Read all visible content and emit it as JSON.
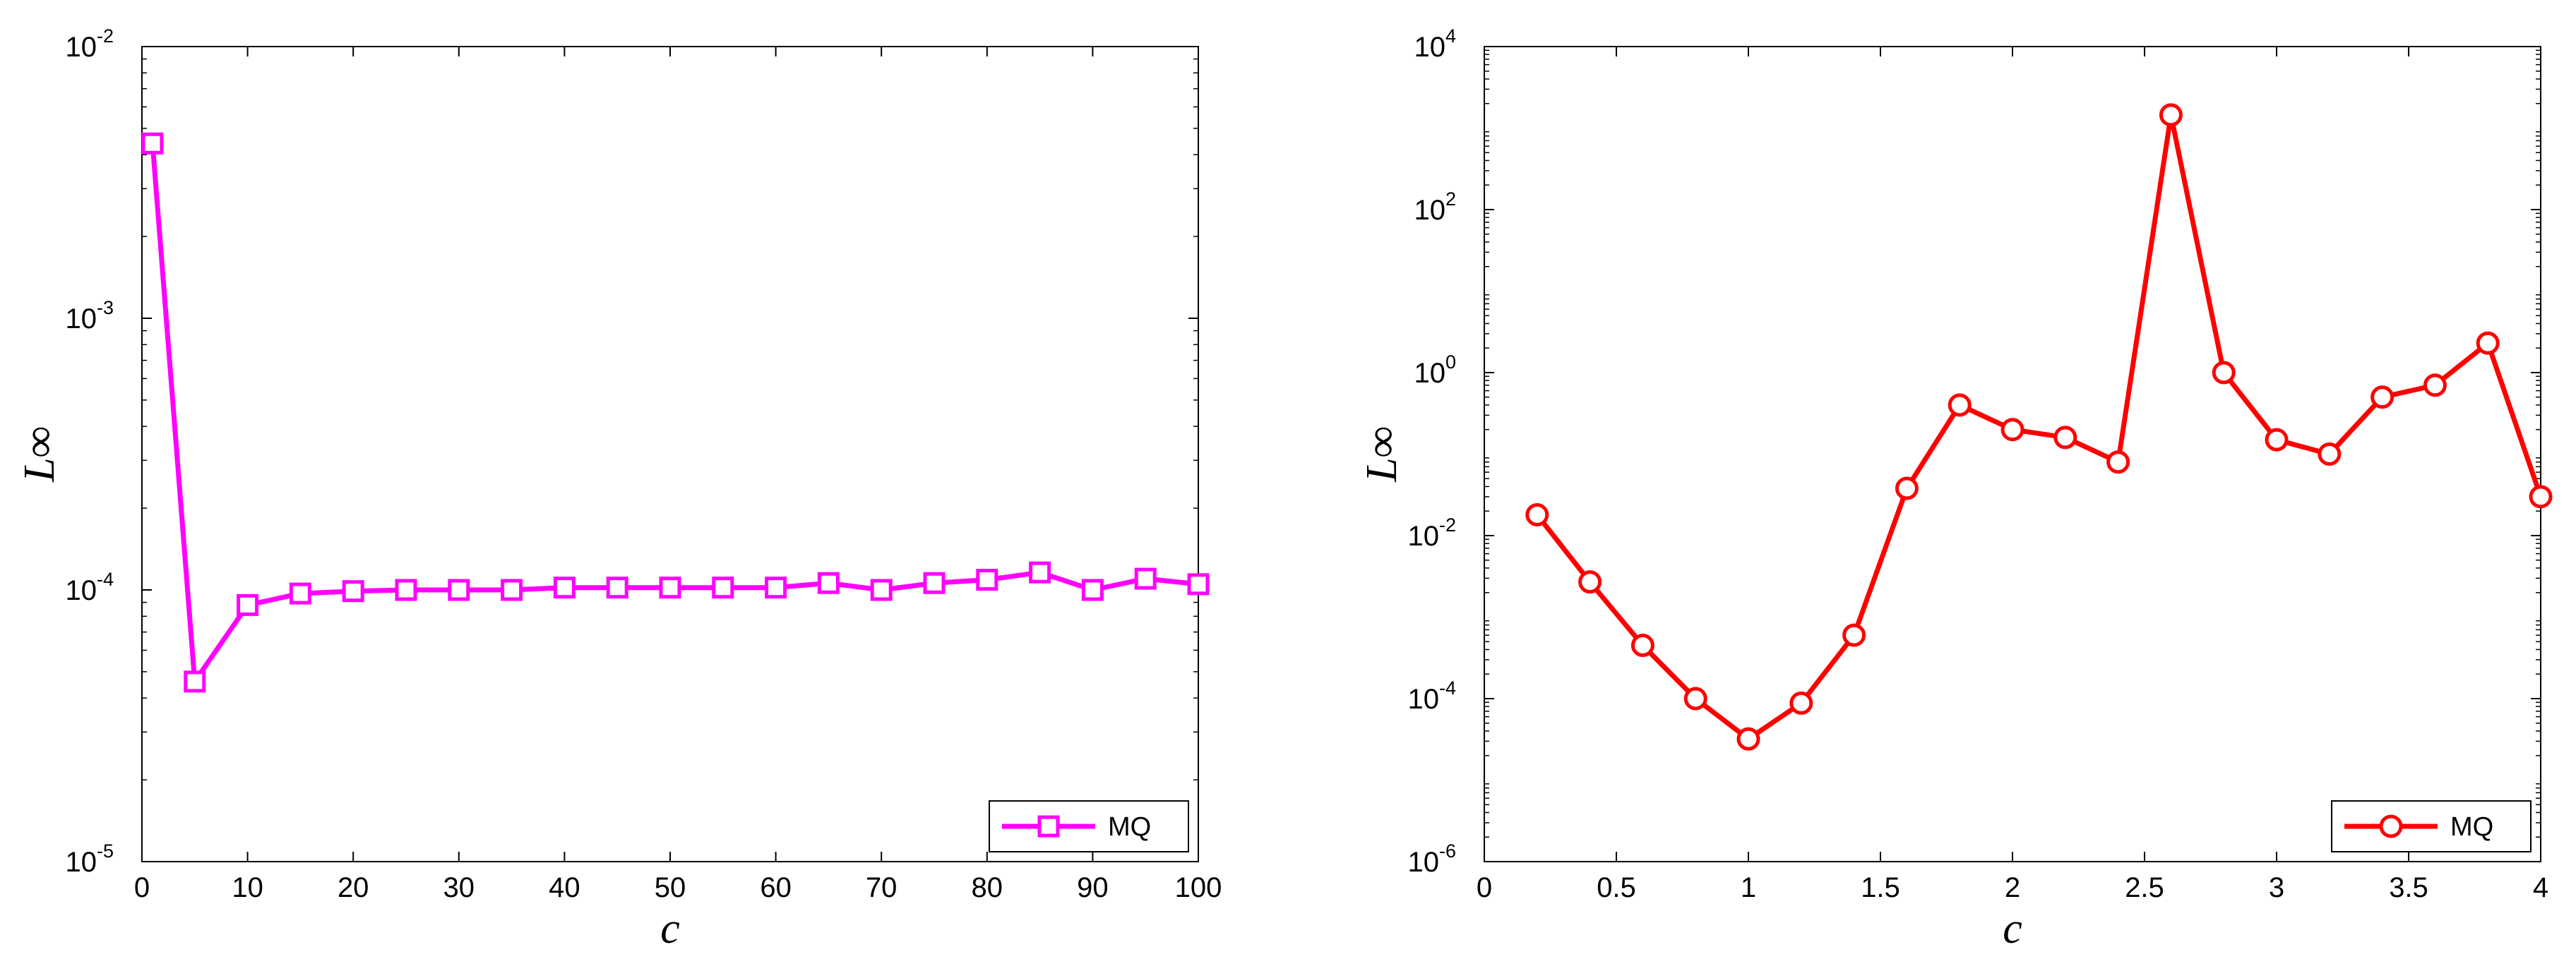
{
  "chart_data": [
    {
      "type": "line",
      "xlabel": "c",
      "ylabel": "L∞",
      "xlim": [
        0,
        100
      ],
      "ylim_log10": [
        -5,
        -2
      ],
      "yscale": "log",
      "xticks": [
        "0",
        "10",
        "20",
        "30",
        "40",
        "50",
        "60",
        "70",
        "80",
        "90",
        "100"
      ],
      "xtick_values": [
        0,
        10,
        20,
        30,
        40,
        50,
        60,
        70,
        80,
        90,
        100
      ],
      "yticks": [
        {
          "base": "10",
          "exp": "-5",
          "value": -5
        },
        {
          "base": "10",
          "exp": "-4",
          "value": -4
        },
        {
          "base": "10",
          "exp": "-3",
          "value": -3
        },
        {
          "base": "10",
          "exp": "-2",
          "value": -2
        }
      ],
      "legend_position": "bottom-right",
      "series": [
        {
          "name": "MQ",
          "color": "#ff00ff",
          "marker": "square",
          "x": [
            1,
            5,
            10,
            15,
            20,
            25,
            30,
            35,
            40,
            45,
            50,
            55,
            60,
            65,
            70,
            75,
            80,
            85,
            90,
            95,
            100
          ],
          "y": [
            0.0044,
            4.6e-05,
            8.8e-05,
            9.7e-05,
            9.9e-05,
            0.0001,
            0.0001,
            0.0001,
            0.000102,
            0.000102,
            0.000102,
            0.000102,
            0.000102,
            0.000106,
            0.0001,
            0.000106,
            0.000109,
            0.000116,
            0.0001,
            0.00011,
            0.000105
          ]
        }
      ]
    },
    {
      "type": "line",
      "xlabel": "c",
      "ylabel": "L∞",
      "xlim": [
        0,
        4
      ],
      "ylim_log10": [
        -6,
        4
      ],
      "yscale": "log",
      "xticks": [
        "0",
        "0.5",
        "1",
        "1.5",
        "2",
        "2.5",
        "3",
        "3.5",
        "4"
      ],
      "xtick_values": [
        0,
        0.5,
        1,
        1.5,
        2,
        2.5,
        3,
        3.5,
        4
      ],
      "yticks": [
        {
          "base": "10",
          "exp": "-6",
          "value": -6
        },
        {
          "base": "10",
          "exp": "-4",
          "value": -4
        },
        {
          "base": "10",
          "exp": "-2",
          "value": -2
        },
        {
          "base": "10",
          "exp": "0",
          "value": 0
        },
        {
          "base": "10",
          "exp": "2",
          "value": 2
        },
        {
          "base": "10",
          "exp": "4",
          "value": 4
        }
      ],
      "legend_position": "bottom-right",
      "series": [
        {
          "name": "MQ",
          "color": "#ff0000",
          "marker": "circle",
          "x": [
            0.2,
            0.4,
            0.6,
            0.8,
            1.0,
            1.2,
            1.4,
            1.6,
            1.8,
            2.0,
            2.2,
            2.4,
            2.6,
            2.8,
            3.0,
            3.2,
            3.4,
            3.6,
            3.8,
            4.0
          ],
          "y": [
            0.018,
            0.0027,
            0.00045,
            0.0001,
            3.2e-05,
            8.8e-05,
            0.0006,
            0.038,
            0.4,
            0.2,
            0.16,
            0.08,
            1450,
            1.0,
            0.15,
            0.1,
            0.5,
            0.7,
            2.3,
            0.03
          ]
        }
      ]
    }
  ]
}
